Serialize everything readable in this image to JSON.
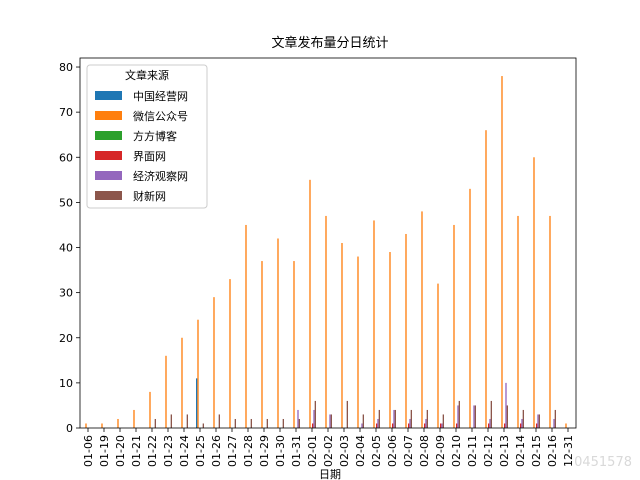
{
  "chart_data": {
    "type": "bar",
    "title": "文章发布量分日统计",
    "xlabel": "日期",
    "ylabel": "",
    "ylim": [
      0,
      82
    ],
    "yticks": [
      0,
      10,
      20,
      30,
      40,
      50,
      60,
      70,
      80
    ],
    "grid": false,
    "legend": {
      "title": "文章来源",
      "placement": "top-left"
    },
    "categories": [
      "01-06",
      "01-19",
      "01-20",
      "01-21",
      "01-22",
      "01-23",
      "01-24",
      "01-25",
      "01-26",
      "01-27",
      "01-28",
      "01-29",
      "01-30",
      "01-31",
      "02-01",
      "02-02",
      "02-03",
      "02-04",
      "02-05",
      "02-06",
      "02-07",
      "02-08",
      "02-09",
      "02-10",
      "02-11",
      "02-12",
      "02-13",
      "02-14",
      "02-15",
      "02-16",
      "12-31"
    ],
    "series": [
      {
        "name": "中国经营网",
        "color": "#1f77b4",
        "values": [
          0,
          0,
          0,
          0,
          0,
          0,
          0,
          11,
          0,
          0,
          0,
          0,
          0,
          0,
          0,
          0,
          0,
          0,
          0,
          0,
          0,
          0,
          0,
          0,
          0,
          0,
          0,
          0,
          0,
          0,
          0
        ]
      },
      {
        "name": "微信公众号",
        "color": "#ff7f0e",
        "values": [
          1,
          1,
          2,
          4,
          8,
          16,
          20,
          24,
          29,
          33,
          45,
          37,
          42,
          37,
          55,
          47,
          41,
          38,
          46,
          39,
          43,
          48,
          32,
          45,
          53,
          66,
          78,
          47,
          60,
          47,
          1
        ]
      },
      {
        "name": "方方博客",
        "color": "#2ca02c",
        "values": [
          0,
          0,
          0,
          0,
          0,
          0,
          0,
          0,
          0,
          0,
          0,
          0,
          0,
          0,
          0,
          0,
          0,
          0,
          0,
          0,
          0,
          0,
          0,
          0,
          0,
          0,
          0,
          0,
          0,
          0,
          0
        ]
      },
      {
        "name": "界面网",
        "color": "#d62728",
        "values": [
          0,
          0,
          0,
          0,
          0,
          0,
          0,
          0,
          0,
          0,
          0,
          0,
          0,
          0,
          1,
          0,
          0,
          0,
          1,
          1,
          1,
          1,
          1,
          1,
          0,
          1,
          1,
          1,
          1,
          0,
          0
        ]
      },
      {
        "name": "经济观察网",
        "color": "#9467bd",
        "values": [
          0,
          0,
          0,
          0,
          0,
          0,
          0,
          0,
          0,
          0,
          0,
          0,
          0,
          4,
          4,
          3,
          0,
          1,
          2,
          4,
          2,
          2,
          1,
          5,
          5,
          2,
          10,
          2,
          3,
          2,
          0
        ]
      },
      {
        "name": "财新网",
        "color": "#8c564b",
        "values": [
          0,
          0,
          0,
          0,
          2,
          3,
          3,
          1,
          3,
          2,
          2,
          2,
          2,
          2,
          6,
          3,
          6,
          3,
          4,
          4,
          4,
          4,
          3,
          6,
          5,
          6,
          5,
          4,
          3,
          4,
          0
        ]
      }
    ]
  },
  "watermark": "0451578"
}
